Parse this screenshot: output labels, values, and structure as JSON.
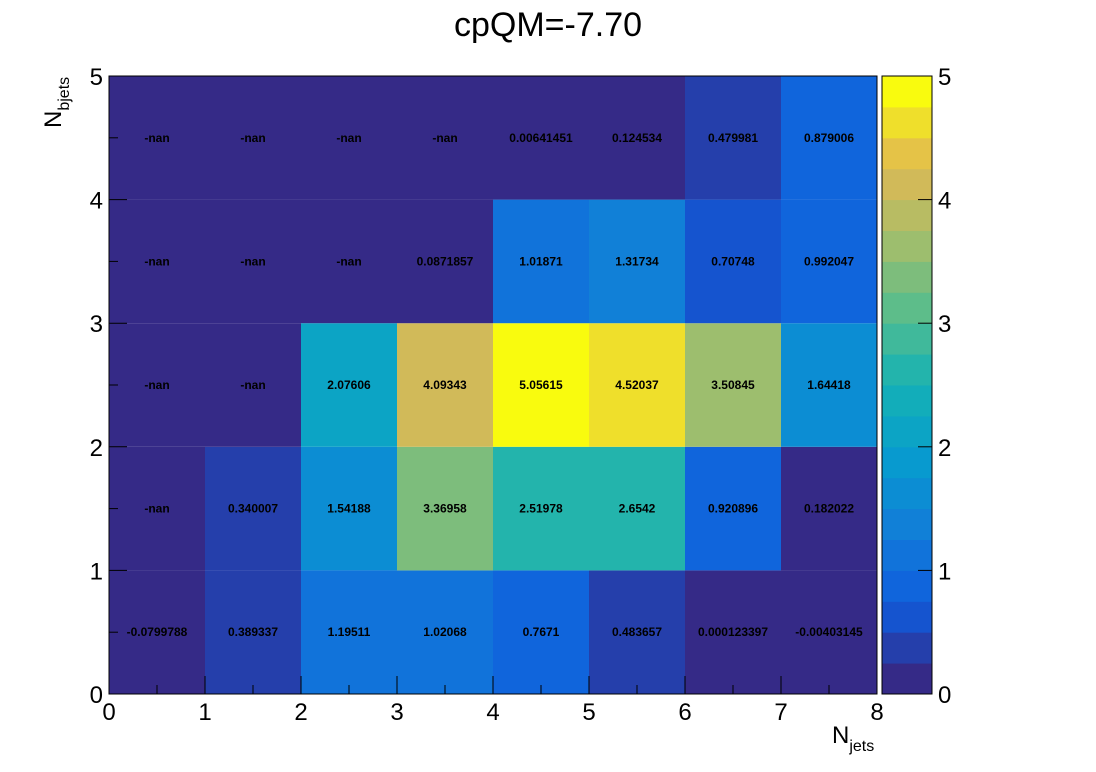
{
  "chart_data": {
    "type": "heatmap",
    "title": "cpQM=-7.70",
    "xlabel_main": "N",
    "xlabel_sub": "jets",
    "ylabel_main": "N",
    "ylabel_sub": "bjets",
    "x_edges": [
      0,
      1,
      2,
      3,
      4,
      5,
      6,
      7,
      8
    ],
    "y_edges": [
      0,
      1,
      2,
      3,
      4,
      5
    ],
    "xlim": [
      0,
      8
    ],
    "ylim": [
      0,
      5
    ],
    "zlim": [
      0,
      5
    ],
    "x_tick_labels": [
      "0",
      "1",
      "2",
      "3",
      "4",
      "5",
      "6",
      "7",
      "8"
    ],
    "y_tick_labels": [
      "0",
      "1",
      "2",
      "3",
      "4",
      "5"
    ],
    "z_tick_labels": [
      "0",
      "1",
      "2",
      "3",
      "4",
      "5"
    ],
    "colormap": "parula",
    "rows_bottom_to_top": [
      [
        "-0.0799788",
        "0.389337",
        "1.19511",
        "1.02068",
        "0.7671",
        "0.483657",
        "0.000123397",
        "-0.00403145"
      ],
      [
        "-nan",
        "0.340007",
        "1.54188",
        "3.36958",
        "2.51978",
        "2.6542",
        "0.920896",
        "0.182022"
      ],
      [
        "-nan",
        "-nan",
        "2.07606",
        "4.09343",
        "5.05615",
        "4.52037",
        "3.50845",
        "1.64418"
      ],
      [
        "-nan",
        "-nan",
        "-nan",
        "0.0871857",
        "1.01871",
        "1.31734",
        "0.70748",
        "0.992047"
      ],
      [
        "-nan",
        "-nan",
        "-nan",
        "-nan",
        "0.00641451",
        "0.124534",
        "0.479981",
        "0.879006"
      ]
    ]
  }
}
